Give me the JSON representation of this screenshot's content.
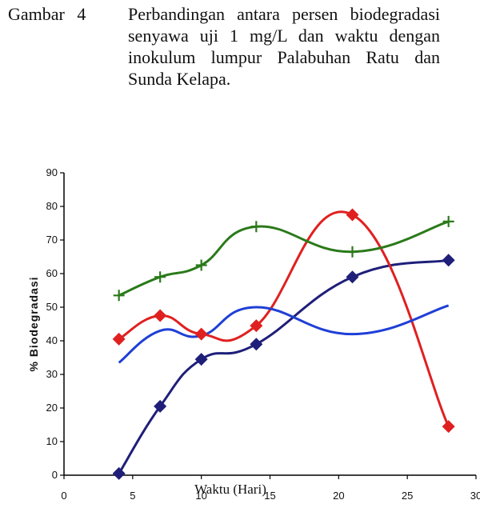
{
  "caption": {
    "label": "Gambar 4",
    "text": "Perbandingan antara persen biodegradasi senyawa uji 1 mg/L dan waktu dengan inokulum lumpur Palabuhan Ratu dan Sunda Kelapa."
  },
  "chart_data": {
    "type": "line",
    "title": "",
    "xlabel": "Waktu (Hari)",
    "ylabel": "% Biodegradasi",
    "xlim": [
      0,
      30
    ],
    "ylim": [
      0,
      90
    ],
    "xticks": [
      "0",
      "5",
      "10",
      "15",
      "20",
      "25",
      "30"
    ],
    "yticks": [
      "0",
      "10",
      "20",
      "30",
      "40",
      "50",
      "60",
      "70",
      "80",
      "90"
    ],
    "grid": false,
    "legend": "none",
    "series": [
      {
        "color": "#1f1f7a",
        "marker": "diamond",
        "points": [
          [
            4,
            0.5
          ],
          [
            7,
            20.5
          ],
          [
            10,
            34.5
          ],
          [
            14,
            39
          ],
          [
            21,
            59
          ],
          [
            28,
            64
          ]
        ]
      },
      {
        "color": "#e02020",
        "marker": "diamond",
        "points": [
          [
            4,
            40.5
          ],
          [
            7,
            47.5
          ],
          [
            10,
            42
          ],
          [
            14,
            44.5
          ],
          [
            21,
            77.5
          ],
          [
            28,
            14.5
          ]
        ]
      },
      {
        "color": "#2a7a1a",
        "marker": "plus",
        "points": [
          [
            4,
            53.5
          ],
          [
            7,
            59
          ],
          [
            10,
            62.5
          ],
          [
            14,
            74
          ],
          [
            21,
            66.5
          ],
          [
            28,
            75.5
          ]
        ]
      },
      {
        "color": "#1e3fd6",
        "marker": "none",
        "points": [
          [
            4,
            33.5
          ],
          [
            7,
            43
          ],
          [
            10,
            41.5
          ],
          [
            14,
            50
          ],
          [
            21,
            42
          ],
          [
            28,
            50.5
          ]
        ]
      }
    ]
  }
}
